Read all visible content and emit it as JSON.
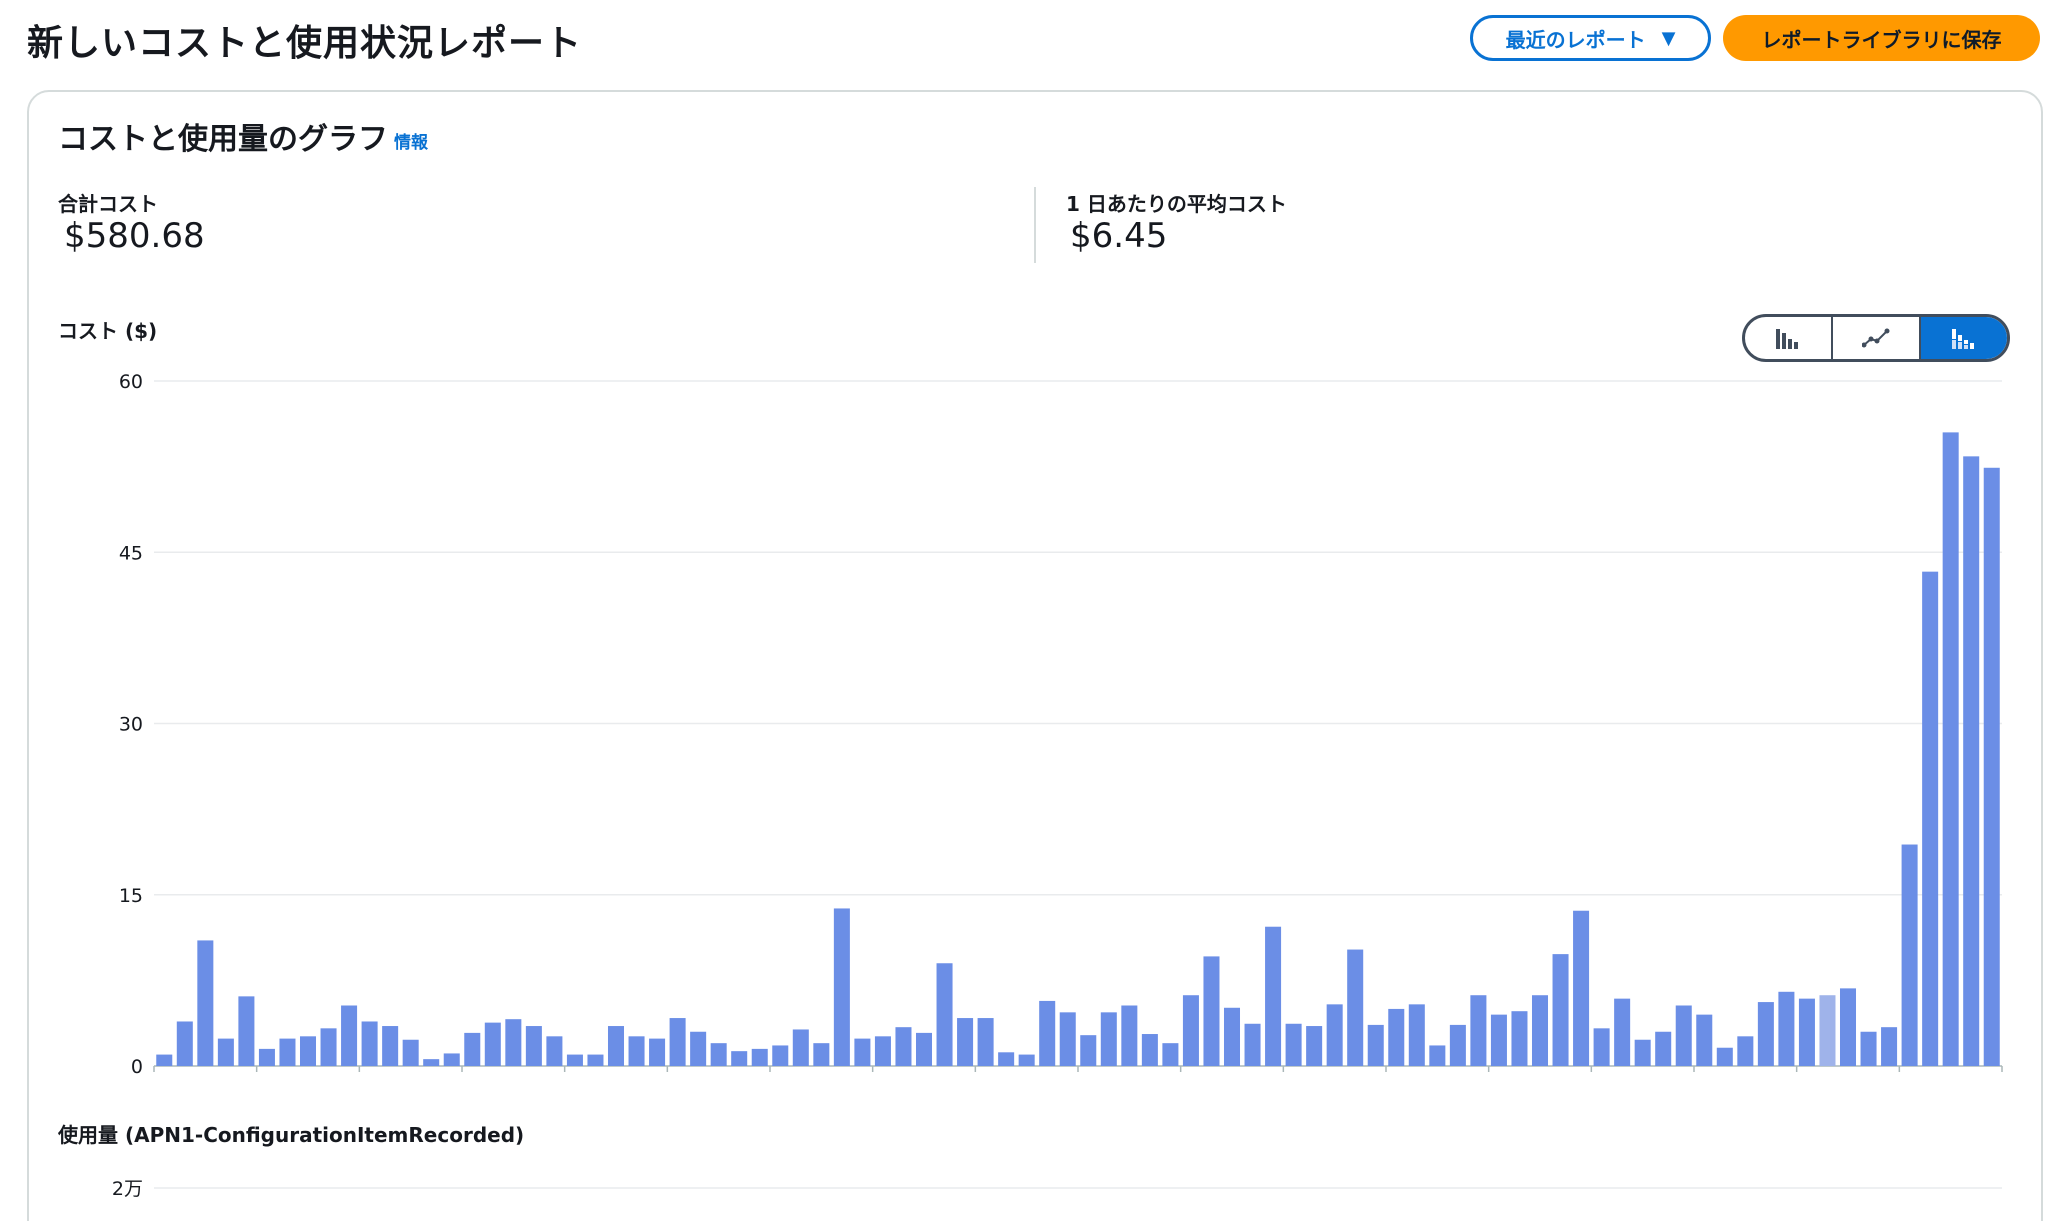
{
  "header": {
    "title": "新しいコストと使用状況レポート",
    "recent_reports_label": "最近のレポート",
    "save_label": "レポートライブラリに保存"
  },
  "panel": {
    "title": "コストと使用量のグラフ",
    "info_link": "情報",
    "total_cost_label": "合計コスト",
    "total_cost_value": "$580.68",
    "avg_daily_label": "1 日あたりの平均コスト",
    "avg_daily_value": "$6.45",
    "cost_axis_title": "コスト ($)",
    "usage_axis_title": "使用量 (APN1-ConfigurationItemRecorded)",
    "chart_toggle": {
      "options": [
        "bar-chart-icon",
        "line-chart-icon",
        "stacked-bar-chart-icon"
      ],
      "active": "stacked-bar-chart-icon"
    }
  },
  "colors": {
    "bar": "#6b8ee6",
    "bar_highlight": "#9fb3ea",
    "accent": "#0972d3",
    "save_button": "#ff9900"
  },
  "chart_data": {
    "type": "bar",
    "ylabel": "コスト ($)",
    "ylim": [
      0,
      60
    ],
    "yticks": [
      0,
      15,
      30,
      45,
      60
    ],
    "grid": true,
    "highlight_index": 81,
    "values": [
      1.0,
      3.9,
      11.0,
      2.4,
      6.1,
      1.5,
      2.4,
      2.6,
      3.3,
      5.3,
      3.9,
      3.5,
      2.3,
      0.6,
      1.1,
      2.9,
      3.8,
      4.1,
      3.5,
      2.6,
      1.0,
      1.0,
      3.5,
      2.6,
      2.4,
      4.2,
      3.0,
      2.0,
      1.3,
      1.5,
      1.8,
      3.2,
      2.0,
      13.8,
      2.4,
      2.6,
      3.4,
      2.9,
      9.0,
      4.2,
      4.2,
      1.2,
      1.0,
      5.7,
      4.7,
      2.7,
      4.7,
      5.3,
      2.8,
      2.0,
      6.2,
      9.6,
      5.1,
      3.7,
      12.2,
      3.7,
      3.5,
      5.4,
      10.2,
      3.6,
      5.0,
      5.4,
      1.8,
      3.6,
      6.2,
      4.5,
      4.8,
      6.2,
      9.8,
      13.6,
      3.3,
      5.9,
      2.3,
      3.0,
      5.3,
      4.5,
      1.6,
      2.6,
      5.6,
      6.5,
      5.9,
      6.2,
      6.8,
      3.0,
      3.4,
      19.4,
      43.3,
      55.5,
      53.4,
      52.4
    ],
    "usage_chart": {
      "ylabel": "使用量 (APN1-ConfigurationItemRecorded)",
      "yticks_visible": [
        "2万"
      ]
    }
  }
}
